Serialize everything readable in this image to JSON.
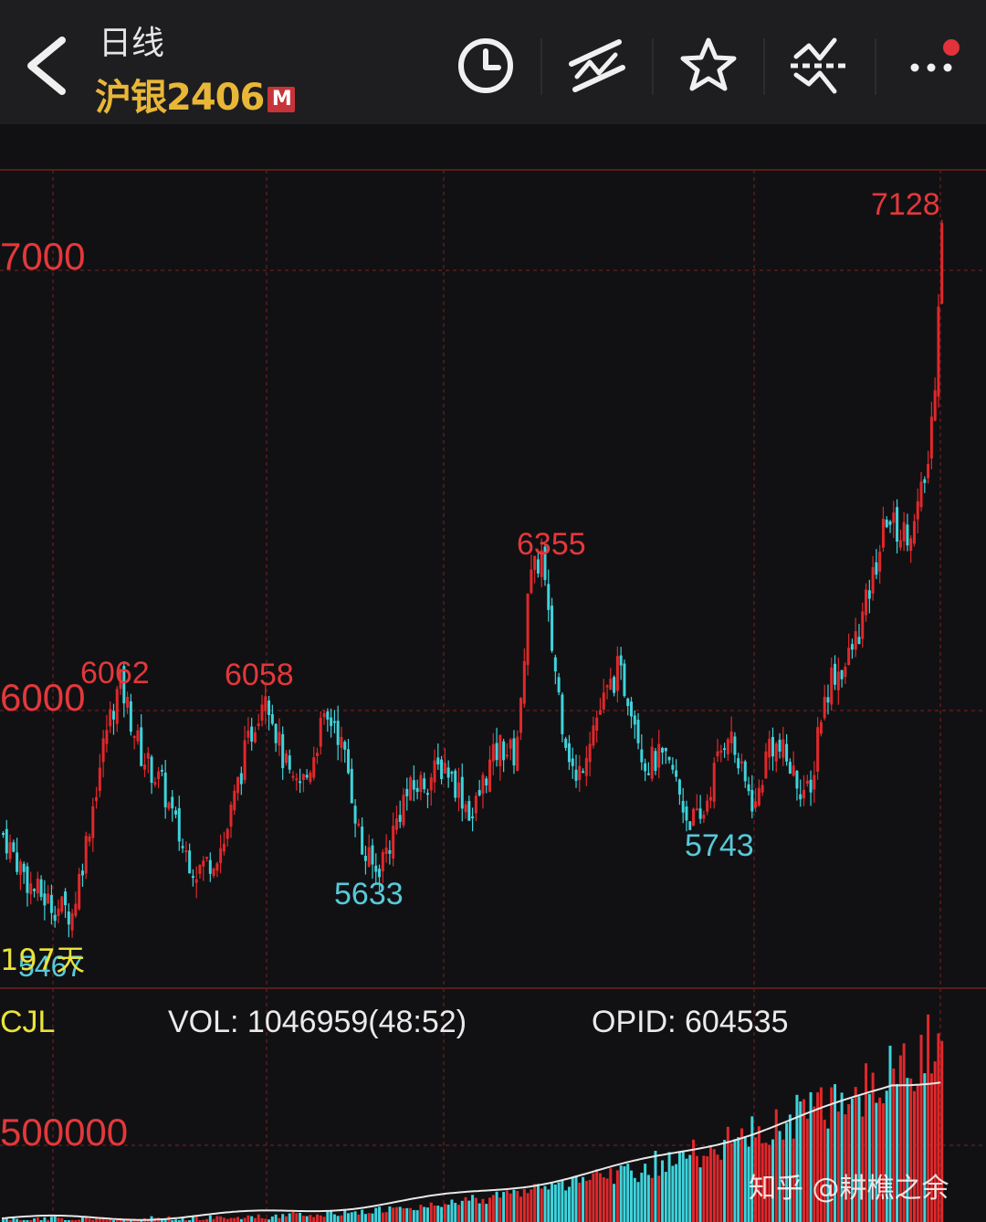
{
  "header": {
    "back_icon": "chevron-left-icon",
    "period_label": "日线",
    "instrument_name": "沪银2406",
    "badge": "M",
    "tools": [
      "clock-icon",
      "trend-lines-icon",
      "star-icon",
      "signal-icon",
      "more-icon"
    ]
  },
  "chart_data": {
    "type": "candlestick",
    "y_axis_labels": [
      "7000",
      "6000"
    ],
    "annotations": {
      "high_7128": "7128",
      "high_6355": "6355",
      "high_6062": "6062",
      "high_6058": "6058",
      "low_5633": "5633",
      "low_5743": "5743",
      "low_5467": "5467",
      "days": "197天"
    },
    "range_top": 7128,
    "range_bottom": 5467,
    "trend_points": [
      [
        0,
        5720
      ],
      [
        8,
        5600
      ],
      [
        14,
        5560
      ],
      [
        20,
        5540
      ],
      [
        24,
        5700
      ],
      [
        30,
        5960
      ],
      [
        34,
        6062
      ],
      [
        40,
        5900
      ],
      [
        46,
        5830
      ],
      [
        52,
        5690
      ],
      [
        56,
        5640
      ],
      [
        60,
        5660
      ],
      [
        64,
        5700
      ],
      [
        70,
        5900
      ],
      [
        76,
        6058
      ],
      [
        80,
        5920
      ],
      [
        84,
        5820
      ],
      [
        88,
        5850
      ],
      [
        92,
        5960
      ],
      [
        96,
        5980
      ],
      [
        100,
        5860
      ],
      [
        104,
        5680
      ],
      [
        108,
        5633
      ],
      [
        112,
        5700
      ],
      [
        116,
        5800
      ],
      [
        120,
        5830
      ],
      [
        124,
        5850
      ],
      [
        128,
        5880
      ],
      [
        132,
        5820
      ],
      [
        136,
        5760
      ],
      [
        140,
        5860
      ],
      [
        144,
        5920
      ],
      [
        148,
        5900
      ],
      [
        150,
        6000
      ],
      [
        152,
        6280
      ],
      [
        156,
        6355
      ],
      [
        158,
        6200
      ],
      [
        162,
        5980
      ],
      [
        166,
        5830
      ],
      [
        170,
        5950
      ],
      [
        174,
        6020
      ],
      [
        178,
        6090
      ],
      [
        182,
        6020
      ],
      [
        186,
        5880
      ],
      [
        190,
        5890
      ],
      [
        194,
        5860
      ],
      [
        198,
        5760
      ],
      [
        202,
        5743
      ],
      [
        206,
        5860
      ],
      [
        210,
        5960
      ],
      [
        214,
        5850
      ],
      [
        218,
        5780
      ],
      [
        222,
        5930
      ],
      [
        226,
        5900
      ],
      [
        230,
        5840
      ],
      [
        234,
        5800
      ],
      [
        236,
        5960
      ],
      [
        240,
        6080
      ],
      [
        244,
        6100
      ],
      [
        248,
        6180
      ],
      [
        252,
        6300
      ],
      [
        256,
        6440
      ],
      [
        260,
        6400
      ],
      [
        264,
        6420
      ],
      [
        268,
        6560
      ],
      [
        270,
        6760
      ],
      [
        272,
        7128
      ]
    ]
  },
  "indicator": {
    "name": "CJL",
    "vol_label": "VOL: 1046959(48:52)",
    "opid_label": "OPID: 604535",
    "axis_label": "500000",
    "values": {
      "vol": 1046959,
      "ratio": "48:52",
      "opid": 604535
    }
  },
  "watermark": "知乎 @耕樵之余",
  "colors": {
    "up": "#e0282b",
    "down": "#3fd3dc",
    "grid": "#5a1c1c",
    "label_red": "#e3383b",
    "label_cyan": "#57c9d9",
    "label_yellow": "#e9e33a",
    "header_bg": "#1e1e20",
    "chart_bg": "#111113",
    "instrument": "#e9b737"
  }
}
